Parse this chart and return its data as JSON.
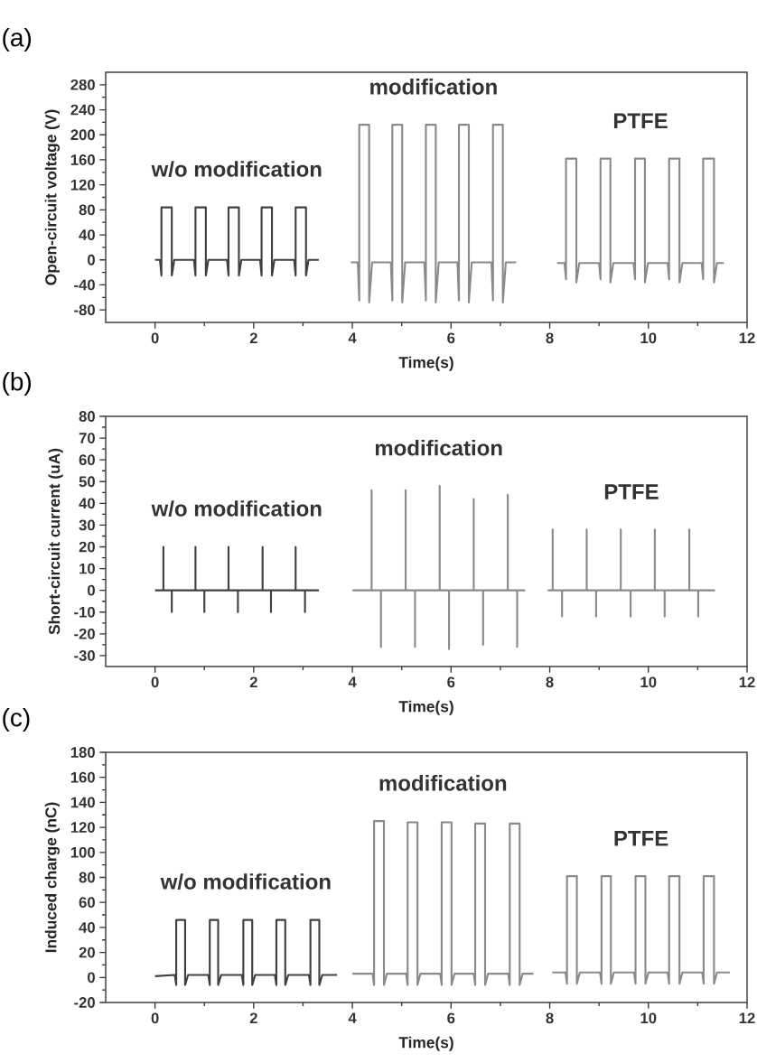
{
  "chart_data": [
    {
      "type": "line",
      "title": "(a)",
      "xlabel": "Time(s)",
      "ylabel": "Open-circuit  voltage (V)",
      "xlim": [
        -1,
        12
      ],
      "xticks": [
        0,
        2,
        4,
        6,
        8,
        10,
        12
      ],
      "ylim": [
        -100,
        300
      ],
      "yticks": [
        -80,
        -40,
        0,
        40,
        80,
        120,
        160,
        200,
        240,
        280
      ],
      "series": [
        {
          "name": "w/o modification",
          "color": "#404040",
          "x": [
            0,
            0.1,
            0.13,
            0.13,
            0.34,
            0.34,
            0.39,
            0.79,
            0.82,
            0.82,
            1.03,
            1.03,
            1.08,
            1.46,
            1.49,
            1.49,
            1.7,
            1.7,
            1.75,
            2.13,
            2.16,
            2.16,
            2.37,
            2.37,
            2.42,
            2.82,
            2.85,
            2.85,
            3.06,
            3.06,
            3.11,
            3.32
          ],
          "values": [
            0,
            0,
            -25,
            84,
            84,
            -25,
            0,
            0,
            -25,
            84,
            84,
            -25,
            0,
            0,
            -25,
            84,
            84,
            -25,
            0,
            0,
            -25,
            84,
            84,
            -25,
            0,
            0,
            -25,
            84,
            84,
            -25,
            0,
            0
          ]
        },
        {
          "name": "modification",
          "color": "#8a8a8a",
          "x": [
            3.97,
            4.11,
            4.14,
            4.14,
            4.34,
            4.34,
            4.4,
            4.78,
            4.81,
            4.81,
            5.01,
            5.01,
            5.07,
            5.46,
            5.49,
            5.49,
            5.69,
            5.69,
            5.75,
            6.13,
            6.16,
            6.16,
            6.36,
            6.36,
            6.42,
            6.82,
            6.85,
            6.85,
            7.05,
            7.05,
            7.11,
            7.32
          ],
          "values": [
            -4,
            -4,
            -65,
            216,
            216,
            -68,
            -4,
            -4,
            -65,
            216,
            216,
            -68,
            -4,
            -4,
            -65,
            216,
            216,
            -68,
            -4,
            -4,
            -65,
            216,
            216,
            -68,
            -4,
            -4,
            -65,
            216,
            216,
            -68,
            -4,
            -4
          ]
        },
        {
          "name": "PTFE",
          "color": "#8a8a8a",
          "x": [
            8.15,
            8.3,
            8.33,
            8.33,
            8.54,
            8.54,
            8.6,
            9.0,
            9.03,
            9.03,
            9.23,
            9.23,
            9.29,
            9.7,
            9.73,
            9.73,
            9.93,
            9.93,
            9.99,
            10.39,
            10.42,
            10.42,
            10.63,
            10.63,
            10.69,
            11.08,
            11.11,
            11.11,
            11.33,
            11.33,
            11.39,
            11.53
          ],
          "values": [
            -5,
            -5,
            -31,
            162,
            162,
            -36,
            -5,
            -5,
            -31,
            162,
            162,
            -36,
            -5,
            -5,
            -31,
            162,
            162,
            -36,
            -5,
            -5,
            -31,
            162,
            162,
            -36,
            -5,
            -5,
            -31,
            162,
            162,
            -36,
            -5,
            -5
          ]
        }
      ]
    },
    {
      "type": "line",
      "title": "(b)",
      "xlabel": "Time(s)",
      "ylabel": "Short-circuit current (uA)",
      "xlim": [
        -1,
        12
      ],
      "xticks": [
        0,
        2,
        4,
        6,
        8,
        10,
        12
      ],
      "ylim": [
        -35,
        80
      ],
      "yticks": [
        -30,
        -20,
        -10,
        0,
        10,
        20,
        30,
        40,
        50,
        60,
        70,
        80
      ],
      "series": [
        {
          "name": "w/o modification",
          "color": "#404040",
          "x": [
            0,
            0.17,
            0.17,
            0.17,
            0.34,
            0.34,
            0.34,
            0.82,
            0.82,
            0.82,
            1.0,
            1.0,
            1.0,
            1.49,
            1.49,
            1.49,
            1.68,
            1.68,
            1.68,
            2.18,
            2.18,
            2.18,
            2.35,
            2.35,
            2.35,
            2.85,
            2.85,
            2.85,
            3.04,
            3.04,
            3.04,
            3.32
          ],
          "values": [
            0,
            0,
            20,
            0,
            0,
            -10,
            0,
            0,
            20,
            0,
            0,
            -10,
            0,
            0,
            20,
            0,
            0,
            -10,
            0,
            0,
            20,
            0,
            0,
            -10,
            0,
            0,
            20,
            0,
            0,
            -10,
            0,
            0
          ]
        },
        {
          "name": "modification",
          "color": "#8a8a8a",
          "x": [
            4.0,
            4.39,
            4.39,
            4.39,
            4.58,
            4.58,
            4.58,
            5.08,
            5.08,
            5.08,
            5.27,
            5.27,
            5.27,
            5.77,
            5.77,
            5.77,
            5.96,
            5.96,
            5.96,
            6.46,
            6.46,
            6.46,
            6.65,
            6.65,
            6.65,
            7.15,
            7.15,
            7.15,
            7.34,
            7.34,
            7.34,
            7.5
          ],
          "values": [
            0,
            0,
            46,
            0,
            0,
            -26,
            0,
            0,
            46,
            0,
            0,
            -26,
            0,
            0,
            48,
            0,
            0,
            -27,
            0,
            0,
            42,
            0,
            0,
            -25,
            0,
            0,
            44,
            0,
            0,
            -26,
            0,
            0
          ]
        },
        {
          "name": "PTFE",
          "color": "#8a8a8a",
          "x": [
            7.96,
            8.06,
            8.06,
            8.06,
            8.25,
            8.25,
            8.25,
            8.75,
            8.75,
            8.75,
            8.94,
            8.94,
            8.94,
            9.44,
            9.44,
            9.44,
            9.64,
            9.64,
            9.64,
            10.13,
            10.13,
            10.13,
            10.33,
            10.33,
            10.33,
            10.83,
            10.83,
            10.83,
            11.01,
            11.01,
            11.01,
            11.35
          ],
          "values": [
            0,
            0,
            28,
            0,
            0,
            -12,
            0,
            0,
            28,
            0,
            0,
            -12,
            0,
            0,
            28,
            0,
            0,
            -12,
            0,
            0,
            28,
            0,
            0,
            -12,
            0,
            0,
            28,
            0,
            0,
            -12,
            0,
            0
          ]
        }
      ]
    },
    {
      "type": "line",
      "title": "(c)",
      "xlabel": "Time(s)",
      "ylabel": "Induced charge (nC)",
      "xlim": [
        -1,
        12
      ],
      "xticks": [
        0,
        2,
        4,
        6,
        8,
        10,
        12
      ],
      "ylim": [
        -20,
        180
      ],
      "yticks": [
        -20,
        0,
        20,
        40,
        60,
        80,
        100,
        120,
        140,
        160,
        180
      ],
      "series": [
        {
          "name": "w/o modification",
          "color": "#404040",
          "x": [
            0,
            0.4,
            0.43,
            0.43,
            0.61,
            0.61,
            0.67,
            1.08,
            1.11,
            1.11,
            1.28,
            1.28,
            1.34,
            1.76,
            1.79,
            1.79,
            1.97,
            1.97,
            2.03,
            2.43,
            2.46,
            2.46,
            2.64,
            2.64,
            2.7,
            3.12,
            3.15,
            3.15,
            3.33,
            3.33,
            3.39,
            3.69
          ],
          "values": [
            1,
            2,
            -6,
            46,
            46,
            -6,
            2,
            2,
            -6,
            46,
            46,
            -6,
            2,
            2,
            -6,
            46,
            46,
            -6,
            2,
            2,
            -6,
            46,
            46,
            -6,
            2,
            2,
            -6,
            46,
            46,
            -6,
            2,
            2
          ]
        },
        {
          "name": "modification",
          "color": "#8a8a8a",
          "x": [
            4.0,
            4.41,
            4.44,
            4.44,
            4.64,
            4.64,
            4.7,
            5.09,
            5.12,
            5.12,
            5.32,
            5.32,
            5.38,
            5.78,
            5.81,
            5.81,
            6.01,
            6.01,
            6.07,
            6.46,
            6.49,
            6.49,
            6.69,
            6.69,
            6.75,
            7.16,
            7.19,
            7.19,
            7.39,
            7.39,
            7.45,
            7.67
          ],
          "values": [
            3,
            3,
            -6,
            125,
            125,
            -6,
            3,
            3,
            -6,
            124,
            124,
            -6,
            3,
            3,
            -6,
            124,
            124,
            -6,
            3,
            3,
            -6,
            123,
            123,
            -6,
            3,
            3,
            -6,
            123,
            123,
            -6,
            3,
            3
          ]
        },
        {
          "name": "PTFE",
          "color": "#8a8a8a",
          "x": [
            8.05,
            8.32,
            8.35,
            8.35,
            8.55,
            8.55,
            8.61,
            9.02,
            9.05,
            9.05,
            9.24,
            9.24,
            9.3,
            9.71,
            9.74,
            9.74,
            9.94,
            9.94,
            10.0,
            10.39,
            10.42,
            10.42,
            10.63,
            10.63,
            10.69,
            11.09,
            11.12,
            11.12,
            11.33,
            11.33,
            11.39,
            11.65
          ],
          "values": [
            4,
            4,
            -5,
            81,
            81,
            -5,
            4,
            4,
            -5,
            81,
            81,
            -5,
            4,
            4,
            -5,
            81,
            81,
            -5,
            4,
            4,
            -5,
            81,
            81,
            -5,
            4,
            4,
            -5,
            81,
            81,
            -5,
            4,
            4
          ]
        }
      ]
    }
  ]
}
